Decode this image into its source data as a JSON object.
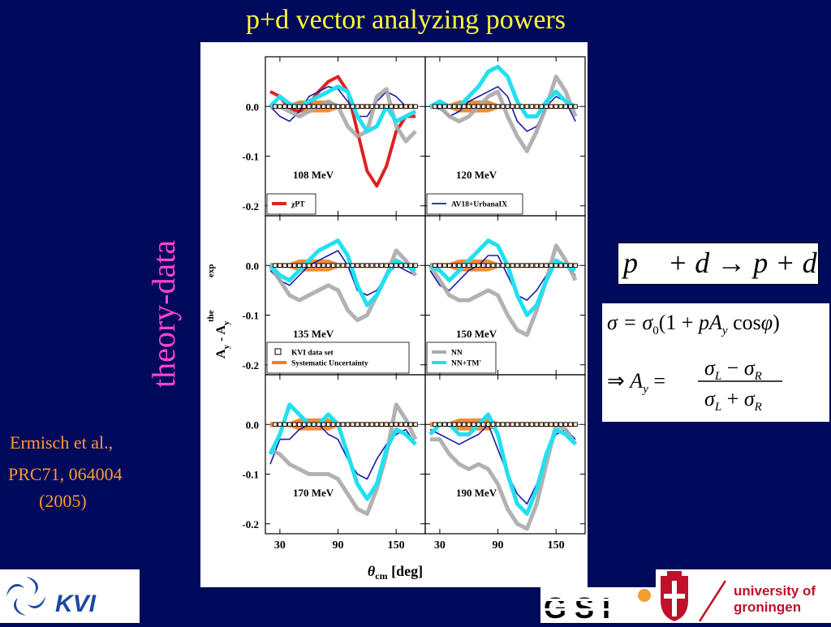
{
  "slide": {
    "title": "p+d vector analyzing powers",
    "side_label": "theory-data",
    "citation": [
      "Ermisch et al.,",
      "PRC71, 064004",
      "(2005)"
    ]
  },
  "formulas": {
    "reaction": "p⃗ + d → p + d",
    "cross_section": "σ = σ₀(1 + pA_y cosφ)",
    "ay_definition": "⇒ A_y = (σ_L − σ_R)/(σ_L + σ_R)"
  },
  "logos": {
    "kvi": "KVI",
    "gsi": "GSI",
    "university_line1": "university of",
    "university_line2": "groningen"
  },
  "colors": {
    "background": "#000a5c",
    "title": "#ffff33",
    "side_label": "#ff44cc",
    "citation": "#ff9933",
    "chiPT": "#e02020",
    "av18": "#1a1aa8",
    "nn": "#aaaaaa",
    "nn_tm": "#22e0f0",
    "syst": "#f08020",
    "kvi_blue": "#1a4aa0",
    "rug_red": "#c0102a"
  },
  "chart_data": {
    "type": "line",
    "ylabel": "A_y^the - A_y^exp",
    "xlabel": "θcm [deg]",
    "xlim": [
      15,
      180
    ],
    "ylim": [
      -0.22,
      0.1
    ],
    "x_ticks": [
      30,
      90,
      150
    ],
    "y_ticks": [
      0.0,
      -0.1,
      -0.2
    ],
    "y_tick_labels": [
      "0.0",
      "-0.1",
      "-0.2"
    ],
    "legend": {
      "panel_108": [
        {
          "name": "χPT",
          "color": "#e02020"
        }
      ],
      "panel_120": [
        {
          "name": "AV18+UrbanaIX",
          "color": "#1a1aa8"
        }
      ],
      "panel_135": [
        {
          "name": "KVI data set",
          "marker": "square"
        },
        {
          "name": "Systematic Uncertainty",
          "color": "#f08020"
        }
      ],
      "panel_150": [
        {
          "name": "NN",
          "color": "#aaaaaa"
        },
        {
          "name": "NN+TM'",
          "color": "#22e0f0"
        }
      ]
    },
    "x": [
      20,
      30,
      40,
      50,
      60,
      70,
      80,
      90,
      100,
      110,
      120,
      130,
      140,
      150,
      160,
      170
    ],
    "panels": [
      {
        "label": "108 MeV",
        "series": [
          {
            "name": "χPT",
            "values": [
              0.03,
              0.02,
              -0.005,
              -0.01,
              0.005,
              0.03,
              0.05,
              0.06,
              0.03,
              -0.05,
              -0.13,
              -0.16,
              -0.12,
              -0.05,
              -0.02,
              -0.02
            ]
          },
          {
            "name": "AV18+UrbanaIX",
            "values": [
              0.0,
              -0.02,
              -0.03,
              -0.01,
              0.02,
              0.03,
              0.04,
              0.035,
              0.01,
              -0.02,
              -0.02,
              0.01,
              0.03,
              0.02,
              0.0,
              0.0
            ]
          },
          {
            "name": "NN",
            "values": [
              0.0,
              0.0,
              -0.01,
              -0.02,
              -0.01,
              0.0,
              0.01,
              0.0,
              -0.04,
              -0.06,
              -0.05,
              0.02,
              0.035,
              -0.04,
              -0.07,
              -0.05
            ]
          },
          {
            "name": "NN+TM'",
            "values": [
              0.0,
              0.02,
              0.005,
              0.0,
              0.01,
              0.02,
              0.03,
              0.04,
              0.03,
              -0.02,
              -0.05,
              -0.04,
              0.0,
              -0.03,
              -0.02,
              -0.01
            ]
          }
        ]
      },
      {
        "label": "120 MeV",
        "series": [
          {
            "name": "AV18+UrbanaIX",
            "values": [
              0.0,
              -0.005,
              -0.02,
              -0.01,
              0.01,
              0.02,
              0.03,
              0.04,
              0.02,
              -0.03,
              -0.05,
              -0.04,
              0.0,
              0.02,
              0.01,
              -0.03
            ]
          },
          {
            "name": "NN",
            "values": [
              0.0,
              0.0,
              -0.02,
              -0.03,
              -0.02,
              0.0,
              0.02,
              0.03,
              -0.02,
              -0.06,
              -0.09,
              -0.05,
              0.0,
              0.06,
              0.03,
              -0.02
            ]
          },
          {
            "name": "NN+TM'",
            "values": [
              0.0,
              0.01,
              0.0,
              0.0,
              0.02,
              0.04,
              0.07,
              0.08,
              0.06,
              0.01,
              -0.02,
              -0.02,
              0.01,
              0.03,
              0.01,
              0.0
            ]
          }
        ]
      },
      {
        "label": "135 MeV",
        "series": [
          {
            "name": "AV18+UrbanaIX",
            "values": [
              -0.01,
              -0.03,
              -0.04,
              -0.02,
              0.0,
              0.01,
              0.02,
              0.03,
              0.0,
              -0.05,
              -0.06,
              -0.05,
              -0.02,
              0.0,
              -0.01,
              -0.02
            ]
          },
          {
            "name": "NN",
            "values": [
              0.0,
              -0.03,
              -0.06,
              -0.07,
              -0.06,
              -0.05,
              -0.04,
              -0.05,
              -0.09,
              -0.11,
              -0.1,
              -0.06,
              -0.02,
              0.03,
              0.01,
              -0.02
            ]
          },
          {
            "name": "NN+TM'",
            "values": [
              0.0,
              -0.02,
              -0.03,
              -0.01,
              0.01,
              0.03,
              0.04,
              0.05,
              0.02,
              -0.04,
              -0.08,
              -0.06,
              -0.02,
              0.01,
              0.0,
              -0.01
            ]
          }
        ]
      },
      {
        "label": "150 MeV",
        "series": [
          {
            "name": "AV18+UrbanaIX",
            "values": [
              -0.01,
              -0.04,
              -0.05,
              -0.03,
              -0.01,
              0.0,
              0.02,
              0.02,
              -0.02,
              -0.06,
              -0.07,
              -0.05,
              -0.02,
              0.0,
              0.0,
              -0.02
            ]
          },
          {
            "name": "NN",
            "values": [
              0.0,
              -0.03,
              -0.06,
              -0.07,
              -0.07,
              -0.06,
              -0.05,
              -0.06,
              -0.1,
              -0.13,
              -0.14,
              -0.09,
              -0.03,
              0.04,
              0.01,
              -0.03
            ]
          },
          {
            "name": "NN+TM'",
            "values": [
              0.0,
              -0.01,
              -0.03,
              -0.01,
              0.01,
              0.03,
              0.05,
              0.04,
              0.0,
              -0.06,
              -0.1,
              -0.08,
              -0.03,
              0.01,
              0.0,
              -0.01
            ]
          }
        ]
      },
      {
        "label": "170 MeV",
        "series": [
          {
            "name": "AV18+UrbanaIX",
            "values": [
              -0.08,
              -0.03,
              -0.03,
              -0.01,
              0.0,
              0.0,
              -0.02,
              -0.03,
              -0.07,
              -0.1,
              -0.11,
              -0.07,
              -0.04,
              -0.02,
              -0.01,
              -0.04
            ]
          },
          {
            "name": "NN",
            "values": [
              -0.05,
              -0.06,
              -0.08,
              -0.09,
              -0.1,
              -0.1,
              -0.1,
              -0.11,
              -0.14,
              -0.17,
              -0.18,
              -0.13,
              -0.06,
              0.04,
              0.01,
              -0.03
            ]
          },
          {
            "name": "NN+TM'",
            "values": [
              -0.06,
              -0.02,
              0.04,
              0.02,
              0.0,
              0.0,
              0.02,
              0.0,
              -0.06,
              -0.12,
              -0.15,
              -0.12,
              -0.05,
              -0.01,
              -0.02,
              -0.04
            ]
          }
        ]
      },
      {
        "label": "190 MeV",
        "series": [
          {
            "name": "AV18+UrbanaIX",
            "values": [
              -0.01,
              -0.02,
              -0.03,
              -0.04,
              -0.03,
              -0.02,
              0.0,
              -0.05,
              -0.1,
              -0.14,
              -0.16,
              -0.12,
              -0.06,
              -0.02,
              -0.01,
              -0.03
            ]
          },
          {
            "name": "NN",
            "values": [
              -0.03,
              -0.03,
              -0.06,
              -0.08,
              -0.09,
              -0.08,
              -0.09,
              -0.12,
              -0.17,
              -0.2,
              -0.21,
              -0.16,
              -0.08,
              0.0,
              -0.01,
              -0.04
            ]
          },
          {
            "name": "NN+TM'",
            "values": [
              -0.02,
              0.0,
              0.0,
              -0.02,
              -0.02,
              0.0,
              0.02,
              -0.02,
              -0.1,
              -0.16,
              -0.18,
              -0.13,
              -0.06,
              -0.01,
              -0.02,
              -0.04
            ]
          }
        ]
      }
    ]
  }
}
